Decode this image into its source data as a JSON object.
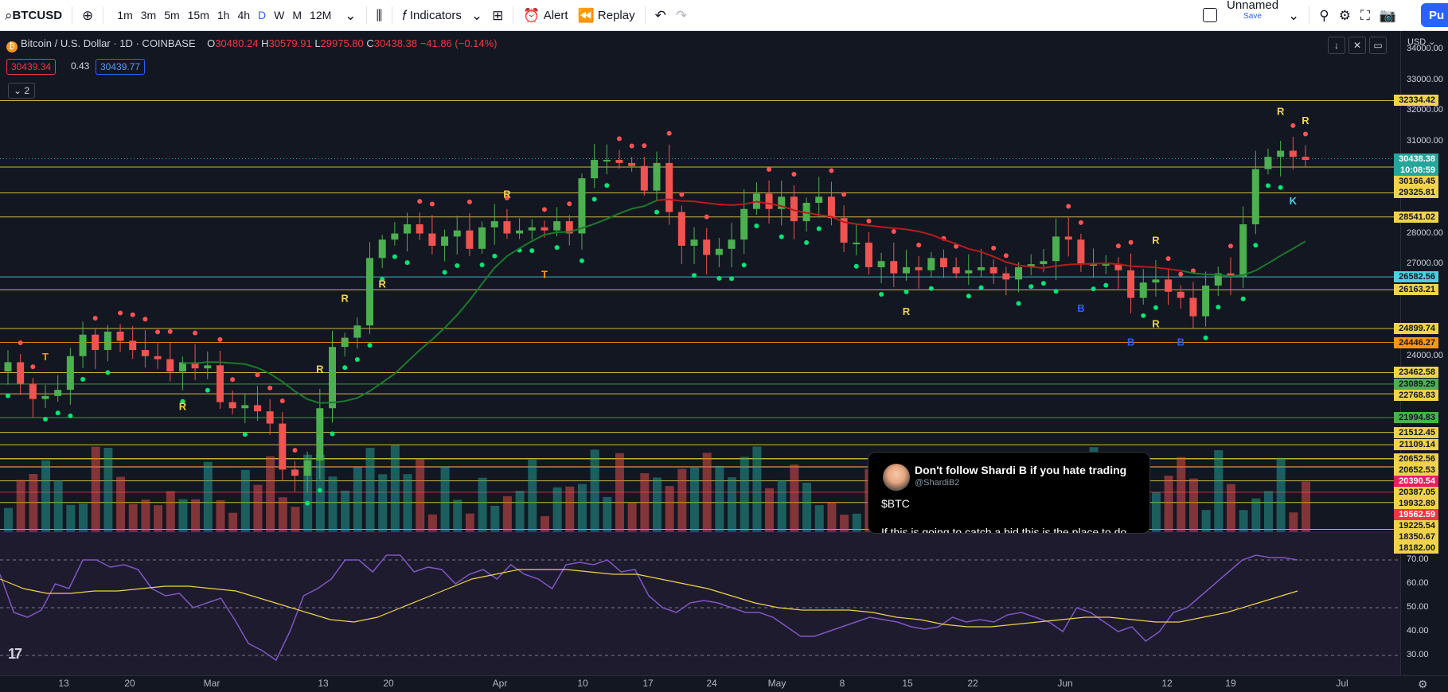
{
  "toolbar": {
    "symbol": "BTCUSD",
    "timeframes": [
      "1m",
      "3m",
      "5m",
      "15m",
      "1h",
      "4h",
      "D",
      "W",
      "M",
      "12M"
    ],
    "active_timeframe": "D",
    "indicators_label": "Indicators",
    "alert_label": "Alert",
    "replay_label": "Replay",
    "layout_name": "Unnamed",
    "layout_save": "Save",
    "publish_label": "Pu"
  },
  "legend": {
    "title": "Bitcoin / U.S. Dollar · 1D · COINBASE",
    "o_label": "O",
    "o": "30480.24",
    "h_label": "H",
    "h": "30579.91",
    "l_label": "L",
    "l": "29975.80",
    "c_label": "C",
    "c": "30438.38",
    "change": "−41.86 (−0.14%)",
    "bid": "30439.34",
    "spread": "0.43",
    "ask": "30439.77",
    "indicator_count": "2"
  },
  "price_scale": {
    "currency": "USD",
    "ticks": [
      "34000.00",
      "33000.00",
      "32000.00",
      "31000.00",
      "28000.00",
      "27000.00",
      "24000.00"
    ],
    "tags": [
      {
        "text": "32334.42",
        "color": "#f0d34a",
        "text_color": "#131722"
      },
      {
        "text": "30438.38",
        "color": "#26a69a",
        "text_color": "#ffffff"
      },
      {
        "text": "10:08:59",
        "color": "#26a69a",
        "text_color": "#ffffff"
      },
      {
        "text": "30166.45",
        "color": "#f0d34a",
        "text_color": "#131722"
      },
      {
        "text": "29325.81",
        "color": "#f0d34a",
        "text_color": "#131722"
      },
      {
        "text": "28541.02",
        "color": "#f0d34a",
        "text_color": "#131722"
      },
      {
        "text": "26582.56",
        "color": "#4dd0e1",
        "text_color": "#131722"
      },
      {
        "text": "26163.21",
        "color": "#f0d34a",
        "text_color": "#131722"
      },
      {
        "text": "24899.74",
        "color": "#f0d34a",
        "text_color": "#131722"
      },
      {
        "text": "24446.27",
        "color": "#ff9800",
        "text_color": "#131722"
      },
      {
        "text": "23462.58",
        "color": "#f0d34a",
        "text_color": "#131722"
      },
      {
        "text": "23089.29",
        "color": "#4caf50",
        "text_color": "#131722"
      },
      {
        "text": "22768.83",
        "color": "#f0d34a",
        "text_color": "#131722"
      },
      {
        "text": "21994.83",
        "color": "#4caf50",
        "text_color": "#131722"
      },
      {
        "text": "21512.45",
        "color": "#f0d34a",
        "text_color": "#131722"
      },
      {
        "text": "21109.14",
        "color": "#f0d34a",
        "text_color": "#131722"
      },
      {
        "text": "20652.56",
        "color": "#f0d34a",
        "text_color": "#131722"
      },
      {
        "text": "20652.53",
        "color": "#f0d34a",
        "text_color": "#131722"
      },
      {
        "text": "20390.54",
        "color": "#e91e63",
        "text_color": "#ffffff"
      },
      {
        "text": "20387.05",
        "color": "#f0d34a",
        "text_color": "#131722"
      },
      {
        "text": "19932.89",
        "color": "#f0d34a",
        "text_color": "#131722"
      },
      {
        "text": "19562.59",
        "color": "#f23645",
        "text_color": "#ffffff"
      },
      {
        "text": "19225.54",
        "color": "#f0d34a",
        "text_color": "#131722"
      },
      {
        "text": "18350.67",
        "color": "#f0d34a",
        "text_color": "#131722"
      },
      {
        "text": "18182.00",
        "color": "#f0d34a",
        "text_color": "#131722"
      }
    ],
    "rsi_ticks": [
      "70.00",
      "60.00",
      "50.00",
      "40.00",
      "30.00"
    ]
  },
  "time_scale": {
    "labels": [
      "13",
      "20",
      "Mar",
      "13",
      "20",
      "Apr",
      "10",
      "17",
      "24",
      "May",
      "8",
      "15",
      "22",
      "Jun",
      "12",
      "19",
      "Jul"
    ]
  },
  "tweet": {
    "name": "Don't follow Shardi B if you hate trading",
    "handle": "@ShardiB2",
    "line1": "$BTC",
    "line2": "If this is going to catch a bid this is the place to do"
  },
  "annotations": {
    "letters": [
      "T",
      "T",
      "R",
      "R",
      "R",
      "R",
      "R",
      "R",
      "R",
      "B",
      "B",
      "B",
      "R",
      "R",
      "R",
      "K"
    ]
  },
  "colors": {
    "up": "#26a69a",
    "down": "#ef5350",
    "green_candle": "#4caf50",
    "red_candle": "#f05350",
    "level": "#f0d34a",
    "rsi": "#7e57c2",
    "rsi_ma": "#f0d34a",
    "accent": "#2962ff"
  },
  "chart_data": {
    "type": "candlestick",
    "symbol": "BTCUSD",
    "timeframe": "1D",
    "ylim": [
      18000,
      34500
    ],
    "last_close": 30438.38,
    "levels": [
      32334.42,
      30166.45,
      29325.81,
      28541.02,
      26582.56,
      26163.21,
      24899.74,
      24446.27,
      23462.58,
      23089.29,
      22768.83,
      21994.83,
      21512.45,
      21109.14,
      20652.56,
      20652.53,
      20390.54,
      20387.05,
      19932.89,
      19562.59,
      19225.54,
      18350.67,
      18182.0
    ],
    "closes": [
      23800,
      23100,
      22600,
      22700,
      22900,
      24000,
      24700,
      24200,
      24800,
      24500,
      24200,
      24000,
      23900,
      23500,
      23800,
      23600,
      23700,
      22500,
      22300,
      22400,
      22200,
      21800,
      20300,
      20100,
      20600,
      22300,
      24300,
      24600,
      25000,
      27200,
      27800,
      28000,
      28300,
      28000,
      27600,
      27900,
      28100,
      27500,
      28200,
      28400,
      28000,
      28100,
      28200,
      28100,
      28400,
      28000,
      29800,
      30400,
      30400,
      30300,
      30200,
      29400,
      30300,
      28700,
      27600,
      27800,
      27300,
      27500,
      27800,
      28800,
      29300,
      28800,
      29200,
      28400,
      29000,
      29200,
      28500,
      27700,
      27700,
      26900,
      27100,
      26700,
      26900,
      26800,
      27200,
      26900,
      26700,
      26800,
      26900,
      26700,
      26500,
      26900,
      27000,
      27100,
      27900,
      27800,
      27000,
      27000,
      27000,
      26800,
      25900,
      26400,
      26500,
      26100,
      25900,
      25300,
      26300,
      26700,
      26600,
      28300,
      30100,
      30500,
      30700,
      30500,
      30400
    ],
    "rsi": [
      64,
      48,
      46,
      49,
      60,
      58,
      70,
      70,
      67,
      68,
      66,
      58,
      55,
      56,
      50,
      52,
      54,
      45,
      35,
      32,
      28,
      40,
      55,
      58,
      62,
      70,
      70,
      65,
      72,
      72,
      65,
      67,
      66,
      60,
      64,
      66,
      62,
      68,
      64,
      62,
      58,
      68,
      69,
      68,
      70,
      65,
      66,
      55,
      50,
      48,
      52,
      53,
      52,
      50,
      48,
      48,
      46,
      42,
      38,
      38,
      40,
      42,
      44,
      46,
      45,
      44,
      42,
      41,
      42,
      46,
      44,
      45,
      44,
      47,
      48,
      46,
      44,
      40,
      50,
      48,
      44,
      40,
      42,
      36,
      40,
      48,
      50,
      55,
      60,
      65,
      70,
      72,
      71,
      71,
      70
    ],
    "rsi_ma": [
      62,
      58,
      56,
      56,
      57,
      57,
      58,
      59,
      59,
      58,
      57,
      54,
      51,
      48,
      45,
      44,
      46,
      50,
      54,
      58,
      62,
      64,
      66,
      66,
      66,
      65,
      64,
      64,
      62,
      60,
      58,
      55,
      52,
      50,
      49,
      49,
      49,
      48,
      46,
      45,
      43,
      42,
      42,
      43,
      44,
      45,
      46,
      46,
      45,
      44,
      44,
      46,
      48,
      51,
      54,
      57
    ]
  }
}
